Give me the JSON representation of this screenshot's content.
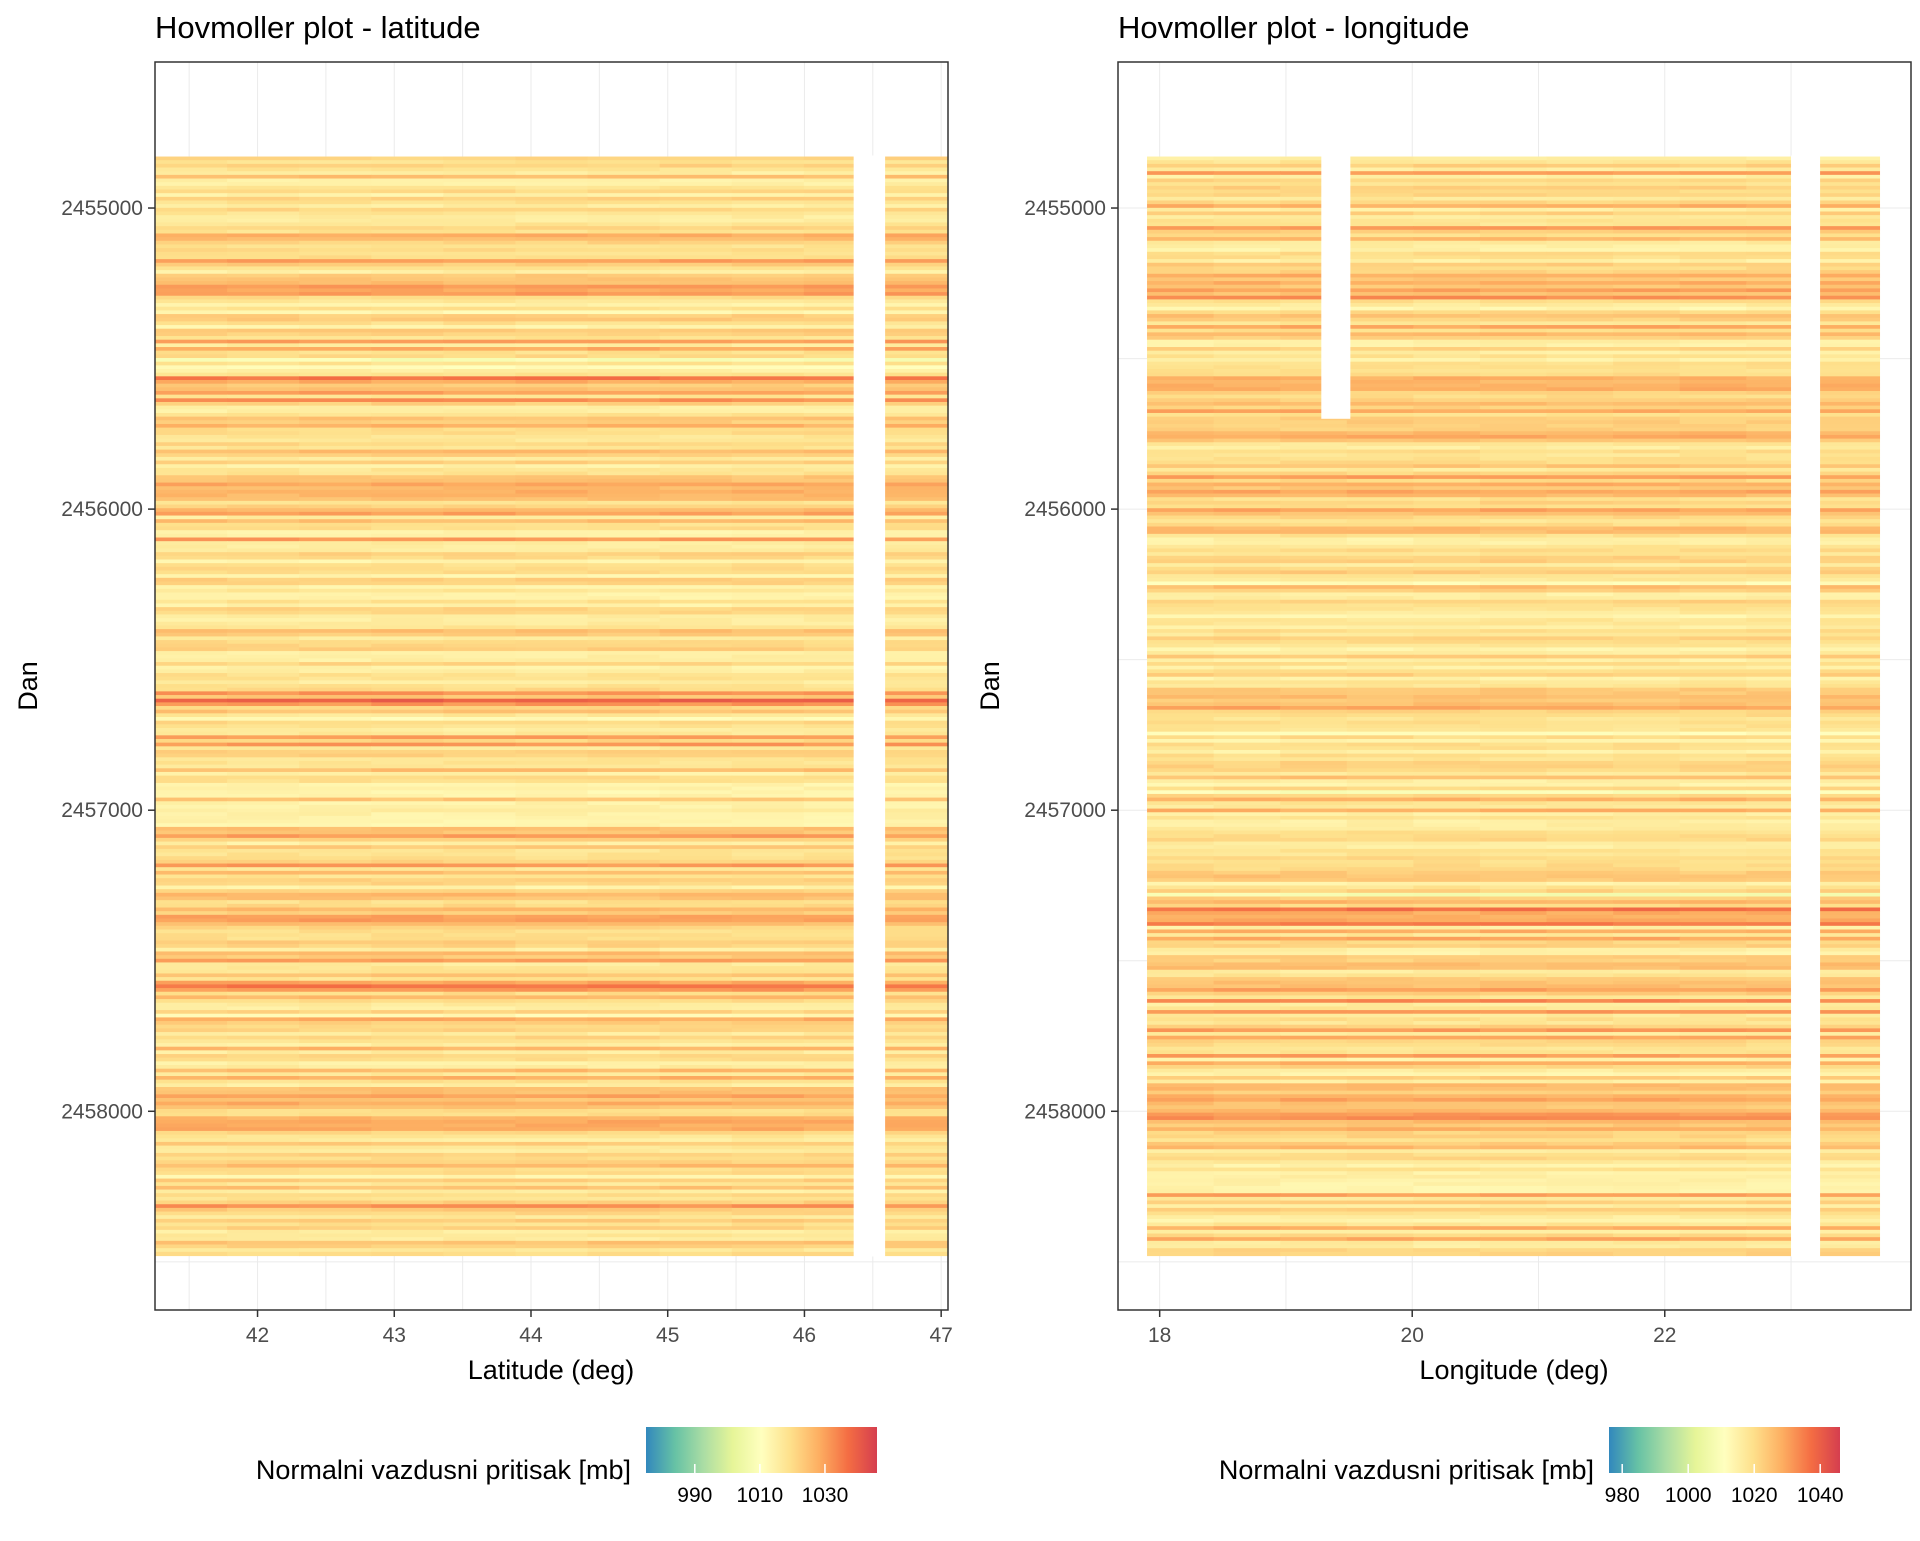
{
  "chart_data": [
    {
      "type": "heatmap",
      "title": "Hovmoller plot - latitude",
      "xlabel": "Latitude (deg)",
      "ylabel": "Dan",
      "xlim": [
        41.25,
        47.05
      ],
      "ylim": [
        2454515,
        2458660
      ],
      "y_reversed": true,
      "x_ticks": [
        42,
        43,
        44,
        45,
        46,
        47
      ],
      "y_ticks": [
        2455000,
        2456000,
        2457000,
        2458000
      ],
      "grid": true,
      "data_x_extent": [
        41.25,
        47.05
      ],
      "data_y_extent": [
        2454829,
        2458479
      ],
      "missing_x_band": [
        46.36,
        46.59
      ],
      "strong_pressure_bands_day": [
        2455260,
        2455595,
        2455935,
        2456015,
        2456645,
        2457360,
        2457590,
        2457960,
        2458040
      ],
      "legend": {
        "title": "Normalni vazdusni pritisak [mb]",
        "position": "bottom",
        "range": [
          975,
          1046
        ],
        "ticks": [
          990,
          1010,
          1030
        ]
      }
    },
    {
      "type": "heatmap",
      "title": "Hovmoller plot - longitude",
      "xlabel": "Longitude (deg)",
      "ylabel": "Dan",
      "xlim": [
        17.67,
        23.95
      ],
      "ylim": [
        2454515,
        2458660
      ],
      "y_reversed": true,
      "x_ticks": [
        18,
        20,
        22
      ],
      "y_ticks": [
        2455000,
        2456000,
        2457000,
        2458000
      ],
      "grid": true,
      "data_x_extent": [
        17.9,
        23.7
      ],
      "data_y_extent": [
        2454829,
        2458479
      ],
      "missing_x_band": [
        23.0,
        23.23
      ],
      "missing_block": {
        "x": [
          19.28,
          19.51
        ],
        "y": [
          2454829,
          2455700
        ]
      },
      "strong_pressure_bands_day": [
        2455260,
        2455595,
        2455935,
        2456015,
        2456645,
        2457360,
        2457590,
        2457960,
        2458040
      ],
      "legend": {
        "title": "Normalni vazdusni pritisak [mb]",
        "position": "bottom",
        "range": [
          976,
          1046
        ],
        "ticks": [
          980,
          1000,
          1020,
          1040
        ]
      }
    }
  ],
  "colors": {
    "scale": [
      "#3288bd",
      "#66c2a5",
      "#abdda4",
      "#e6f598",
      "#ffffbf",
      "#fee08b",
      "#fdae61",
      "#f46d43",
      "#d53e4f"
    ],
    "panel_border": "#333333",
    "grid": "#ebebeb"
  }
}
